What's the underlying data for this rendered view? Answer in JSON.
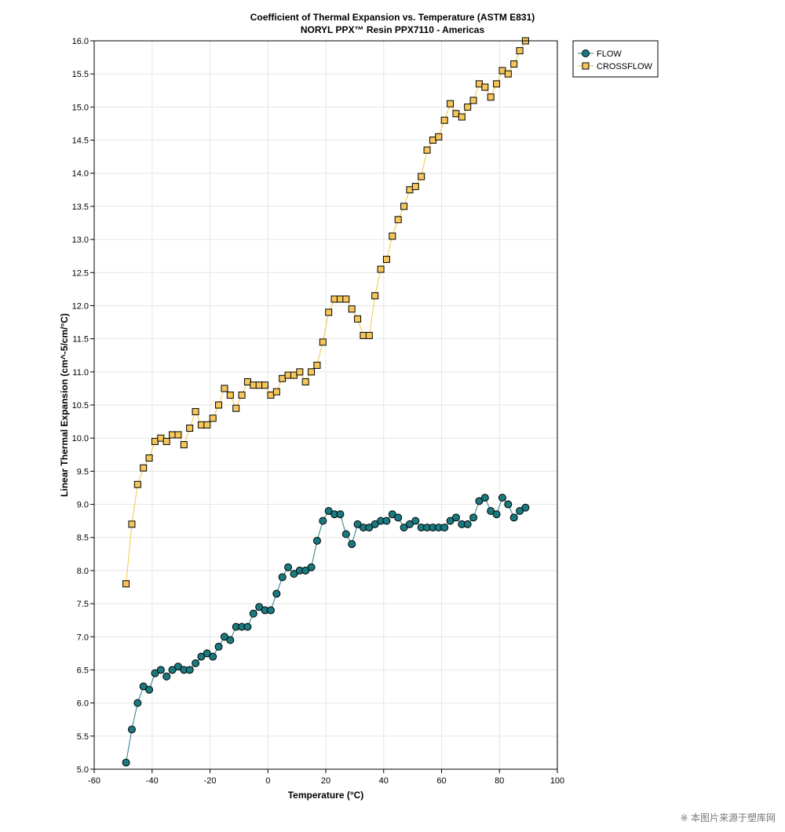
{
  "chart_data": {
    "type": "line",
    "title": "Coefficient of Thermal Expansion vs. Temperature (ASTM E831)",
    "subtitle": "NORYL PPX™ Resin PPX7110 - Americas",
    "xlabel": "Temperature (°C)",
    "ylabel": "Linear Thermal Expansion (cm^-5/cm/°C)",
    "xlim": [
      -60,
      100
    ],
    "ylim": [
      5.0,
      16.0
    ],
    "xticks": [
      -60,
      -40,
      -20,
      0,
      20,
      40,
      60,
      80,
      100
    ],
    "yticks": [
      5.0,
      5.5,
      6.0,
      6.5,
      7.0,
      7.5,
      8.0,
      8.5,
      9.0,
      9.5,
      10.0,
      10.5,
      11.0,
      11.5,
      12.0,
      12.5,
      13.0,
      13.5,
      14.0,
      14.5,
      15.0,
      15.5,
      16.0
    ],
    "grid": true,
    "legend_position": "top-right, outside plot",
    "series": [
      {
        "name": "FLOW",
        "marker": "circle",
        "color": "#1a7a80",
        "line_color": "#2a7e86",
        "points": [
          [
            -49,
            5.1
          ],
          [
            -47,
            5.6
          ],
          [
            -45,
            6.0
          ],
          [
            -43,
            6.25
          ],
          [
            -41,
            6.2
          ],
          [
            -39,
            6.45
          ],
          [
            -37,
            6.5
          ],
          [
            -35,
            6.4
          ],
          [
            -33,
            6.5
          ],
          [
            -31,
            6.55
          ],
          [
            -29,
            6.5
          ],
          [
            -27,
            6.5
          ],
          [
            -25,
            6.6
          ],
          [
            -23,
            6.7
          ],
          [
            -21,
            6.75
          ],
          [
            -19,
            6.7
          ],
          [
            -17,
            6.85
          ],
          [
            -15,
            7.0
          ],
          [
            -13,
            6.95
          ],
          [
            -11,
            7.15
          ],
          [
            -9,
            7.15
          ],
          [
            -7,
            7.15
          ],
          [
            -5,
            7.35
          ],
          [
            -3,
            7.45
          ],
          [
            -1,
            7.4
          ],
          [
            1,
            7.4
          ],
          [
            3,
            7.65
          ],
          [
            5,
            7.9
          ],
          [
            7,
            8.05
          ],
          [
            9,
            7.95
          ],
          [
            11,
            8.0
          ],
          [
            13,
            8.0
          ],
          [
            15,
            8.05
          ],
          [
            17,
            8.45
          ],
          [
            19,
            8.75
          ],
          [
            21,
            8.9
          ],
          [
            23,
            8.85
          ],
          [
            25,
            8.85
          ],
          [
            27,
            8.55
          ],
          [
            29,
            8.4
          ],
          [
            31,
            8.7
          ],
          [
            33,
            8.65
          ],
          [
            35,
            8.65
          ],
          [
            37,
            8.7
          ],
          [
            39,
            8.75
          ],
          [
            41,
            8.75
          ],
          [
            43,
            8.85
          ],
          [
            45,
            8.8
          ],
          [
            47,
            8.65
          ],
          [
            49,
            8.7
          ],
          [
            51,
            8.75
          ],
          [
            53,
            8.65
          ],
          [
            55,
            8.65
          ],
          [
            57,
            8.65
          ],
          [
            59,
            8.65
          ],
          [
            61,
            8.65
          ],
          [
            63,
            8.75
          ],
          [
            65,
            8.8
          ],
          [
            67,
            8.7
          ],
          [
            69,
            8.7
          ],
          [
            71,
            8.8
          ],
          [
            73,
            9.05
          ],
          [
            75,
            9.1
          ],
          [
            77,
            8.9
          ],
          [
            79,
            8.85
          ],
          [
            81,
            9.1
          ],
          [
            83,
            9.0
          ],
          [
            85,
            8.8
          ],
          [
            87,
            8.9
          ],
          [
            89,
            8.95
          ]
        ]
      },
      {
        "name": "CROSSFLOW",
        "marker": "square",
        "color": "#f5c65a",
        "line_color": "#f2c84a",
        "points": [
          [
            -49,
            7.8
          ],
          [
            -47,
            8.7
          ],
          [
            -45,
            9.3
          ],
          [
            -43,
            9.55
          ],
          [
            -41,
            9.7
          ],
          [
            -39,
            9.95
          ],
          [
            -37,
            10.0
          ],
          [
            -35,
            9.95
          ],
          [
            -33,
            10.05
          ],
          [
            -31,
            10.05
          ],
          [
            -29,
            9.9
          ],
          [
            -27,
            10.15
          ],
          [
            -25,
            10.4
          ],
          [
            -23,
            10.2
          ],
          [
            -21,
            10.2
          ],
          [
            -19,
            10.3
          ],
          [
            -17,
            10.5
          ],
          [
            -15,
            10.75
          ],
          [
            -13,
            10.65
          ],
          [
            -11,
            10.45
          ],
          [
            -9,
            10.65
          ],
          [
            -7,
            10.85
          ],
          [
            -5,
            10.8
          ],
          [
            -3,
            10.8
          ],
          [
            -1,
            10.8
          ],
          [
            1,
            10.65
          ],
          [
            3,
            10.7
          ],
          [
            5,
            10.9
          ],
          [
            7,
            10.95
          ],
          [
            9,
            10.95
          ],
          [
            11,
            11.0
          ],
          [
            13,
            10.85
          ],
          [
            15,
            11.0
          ],
          [
            17,
            11.1
          ],
          [
            19,
            11.45
          ],
          [
            21,
            11.9
          ],
          [
            23,
            12.1
          ],
          [
            25,
            12.1
          ],
          [
            27,
            12.1
          ],
          [
            29,
            11.95
          ],
          [
            31,
            11.8
          ],
          [
            33,
            11.55
          ],
          [
            35,
            11.55
          ],
          [
            37,
            12.15
          ],
          [
            39,
            12.55
          ],
          [
            41,
            12.7
          ],
          [
            43,
            13.05
          ],
          [
            45,
            13.3
          ],
          [
            47,
            13.5
          ],
          [
            49,
            13.75
          ],
          [
            51,
            13.8
          ],
          [
            53,
            13.95
          ],
          [
            55,
            14.35
          ],
          [
            57,
            14.5
          ],
          [
            59,
            14.55
          ],
          [
            61,
            14.8
          ],
          [
            63,
            15.05
          ],
          [
            65,
            14.9
          ],
          [
            67,
            14.85
          ],
          [
            69,
            15.0
          ],
          [
            71,
            15.1
          ],
          [
            73,
            15.35
          ],
          [
            75,
            15.3
          ],
          [
            77,
            15.15
          ],
          [
            79,
            15.35
          ],
          [
            81,
            15.55
          ],
          [
            83,
            15.5
          ],
          [
            85,
            15.65
          ],
          [
            87,
            15.85
          ],
          [
            89,
            16.0
          ]
        ]
      }
    ]
  },
  "watermark": "※ 本图片来源于塑库网"
}
